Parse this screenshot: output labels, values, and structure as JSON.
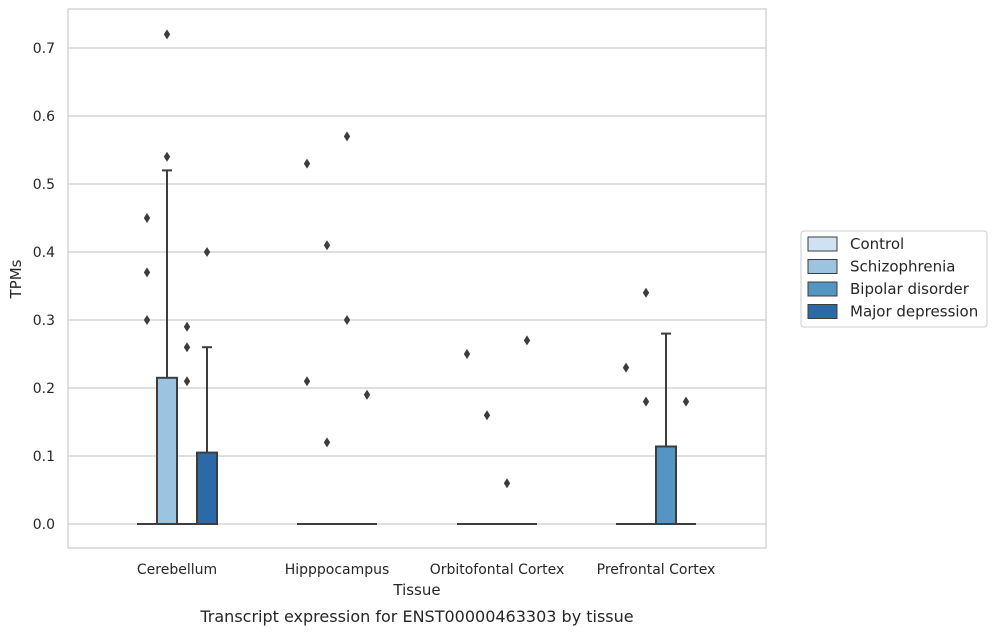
{
  "chart_data": {
    "type": "boxplot",
    "xlabel": "Tissue",
    "ylabel": "TPMs",
    "caption": "Transcript expression for ENST00000463303 by tissue",
    "ylim": [
      -0.035,
      0.755
    ],
    "yticks": [
      0.0,
      0.1,
      0.2,
      0.3,
      0.4,
      0.5,
      0.6,
      0.7
    ],
    "ytick_labels": [
      "0.0",
      "0.1",
      "0.2",
      "0.3",
      "0.4",
      "0.5",
      "0.6",
      "0.7"
    ],
    "grid": "horizontal",
    "legend_position": "right",
    "categories": [
      "Cerebellum",
      "Hipppocampus",
      "Orbitofontal Cortex",
      "Prefrontal Cortex"
    ],
    "series": [
      {
        "name": "Control",
        "color": "#d0e1f2",
        "boxes": [
          {
            "q1": 0.0,
            "median": 0.0,
            "q3": 0.0,
            "whisker_low": 0.0,
            "whisker_high": 0.0,
            "outliers": [
              0.45,
              0.37,
              0.3
            ]
          },
          {
            "q1": 0.0,
            "median": 0.0,
            "q3": 0.0,
            "whisker_low": 0.0,
            "whisker_high": 0.0,
            "outliers": [
              0.53,
              0.21
            ]
          },
          {
            "q1": 0.0,
            "median": 0.0,
            "q3": 0.0,
            "whisker_low": 0.0,
            "whisker_high": 0.0,
            "outliers": [
              0.25
            ]
          },
          {
            "q1": 0.0,
            "median": 0.0,
            "q3": 0.0,
            "whisker_low": 0.0,
            "whisker_high": 0.0,
            "outliers": [
              0.23
            ]
          }
        ]
      },
      {
        "name": "Schizophrenia",
        "color": "#9ac4df",
        "boxes": [
          {
            "q1": 0.0,
            "median": 0.0,
            "q3": 0.215,
            "whisker_low": 0.0,
            "whisker_high": 0.52,
            "outliers": [
              0.72,
              0.54
            ]
          },
          {
            "q1": 0.0,
            "median": 0.0,
            "q3": 0.0,
            "whisker_low": 0.0,
            "whisker_high": 0.0,
            "outliers": [
              0.41,
              0.12
            ]
          },
          {
            "q1": 0.0,
            "median": 0.0,
            "q3": 0.0,
            "whisker_low": 0.0,
            "whisker_high": 0.0,
            "outliers": [
              0.16
            ]
          },
          {
            "q1": 0.0,
            "median": 0.0,
            "q3": 0.0,
            "whisker_low": 0.0,
            "whisker_high": 0.0,
            "outliers": [
              0.34,
              0.18
            ]
          }
        ]
      },
      {
        "name": "Bipolar disorder",
        "color": "#5595c4",
        "boxes": [
          {
            "q1": 0.0,
            "median": 0.0,
            "q3": 0.0,
            "whisker_low": 0.0,
            "whisker_high": 0.0,
            "outliers": [
              0.29,
              0.26,
              0.21
            ]
          },
          {
            "q1": 0.0,
            "median": 0.0,
            "q3": 0.0,
            "whisker_low": 0.0,
            "whisker_high": 0.0,
            "outliers": [
              0.57,
              0.3
            ]
          },
          {
            "q1": 0.0,
            "median": 0.0,
            "q3": 0.0,
            "whisker_low": 0.0,
            "whisker_high": 0.0,
            "outliers": [
              0.06
            ]
          },
          {
            "q1": 0.0,
            "median": 0.0,
            "q3": 0.114,
            "whisker_low": 0.0,
            "whisker_high": 0.28,
            "outliers": []
          }
        ]
      },
      {
        "name": "Major depression",
        "color": "#2b6aa6",
        "boxes": [
          {
            "q1": 0.0,
            "median": 0.0,
            "q3": 0.105,
            "whisker_low": 0.0,
            "whisker_high": 0.26,
            "outliers": [
              0.4
            ]
          },
          {
            "q1": 0.0,
            "median": 0.0,
            "q3": 0.0,
            "whisker_low": 0.0,
            "whisker_high": 0.0,
            "outliers": [
              0.19
            ]
          },
          {
            "q1": 0.0,
            "median": 0.0,
            "q3": 0.0,
            "whisker_low": 0.0,
            "whisker_high": 0.0,
            "outliers": [
              0.27
            ]
          },
          {
            "q1": 0.0,
            "median": 0.0,
            "q3": 0.0,
            "whisker_low": 0.0,
            "whisker_high": 0.0,
            "outliers": [
              0.18
            ]
          }
        ]
      }
    ]
  }
}
